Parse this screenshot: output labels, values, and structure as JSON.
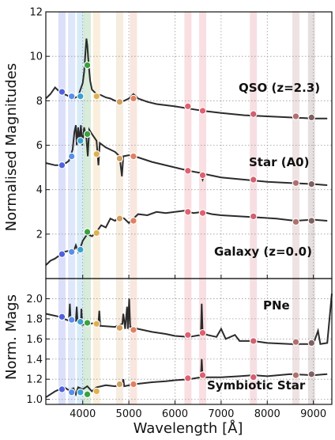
{
  "chart_data": [
    {
      "type": "line",
      "panel": "top",
      "ylabel": "Normalised Magnitudes",
      "ylim": [
        0,
        12
      ],
      "xlim": [
        3200,
        9400
      ],
      "yticks": [
        "2",
        "4",
        "6",
        "8",
        "10",
        "12"
      ],
      "grid": true,
      "filter_bands": [
        {
          "center": 3550,
          "color": "#5060e0"
        },
        {
          "center": 3760,
          "color": "#5a8ee8"
        },
        {
          "center": 3950,
          "color": "#3aa0d0"
        },
        {
          "center": 4100,
          "color": "#3aa040"
        },
        {
          "center": 4300,
          "color": "#e0b050"
        },
        {
          "center": 4800,
          "color": "#d0a060"
        },
        {
          "center": 5100,
          "color": "#e08060"
        },
        {
          "center": 6280,
          "color": "#e06070"
        },
        {
          "center": 6600,
          "color": "#e06070"
        },
        {
          "center": 7700,
          "color": "#d06070"
        },
        {
          "center": 8620,
          "color": "#b07070"
        },
        {
          "center": 8960,
          "color": "#806060"
        }
      ],
      "series": [
        {
          "name": "QSO (z=2.3)",
          "line": [
            [
              3200,
              8.1
            ],
            [
              3300,
              8.3
            ],
            [
              3400,
              8.6
            ],
            [
              3500,
              8.4
            ],
            [
              3600,
              8.3
            ],
            [
              3700,
              8.2
            ],
            [
              3800,
              8.1
            ],
            [
              3900,
              8.2
            ],
            [
              3950,
              8.5
            ],
            [
              4000,
              8.8
            ],
            [
              4030,
              9.3
            ],
            [
              4060,
              10.2
            ],
            [
              4080,
              10.8
            ],
            [
              4100,
              10.5
            ],
            [
              4130,
              9.6
            ],
            [
              4160,
              8.9
            ],
            [
              4200,
              8.5
            ],
            [
              4300,
              8.3
            ],
            [
              4400,
              8.25
            ],
            [
              4500,
              8.15
            ],
            [
              4600,
              8.1
            ],
            [
              4700,
              8.0
            ],
            [
              4800,
              7.95
            ],
            [
              4900,
              8.0
            ],
            [
              5000,
              8.1
            ],
            [
              5100,
              8.3
            ],
            [
              5200,
              8.1
            ],
            [
              5400,
              7.95
            ],
            [
              5600,
              7.85
            ],
            [
              6000,
              7.75
            ],
            [
              6300,
              7.65
            ],
            [
              6600,
              7.55
            ],
            [
              7000,
              7.45
            ],
            [
              7500,
              7.35
            ],
            [
              8000,
              7.3
            ],
            [
              8500,
              7.25
            ],
            [
              9000,
              7.2
            ],
            [
              9300,
              7.2
            ]
          ],
          "points": [
            [
              3550,
              8.4
            ],
            [
              3760,
              8.2
            ],
            [
              3950,
              8.2
            ],
            [
              4100,
              9.6
            ],
            [
              4300,
              8.2
            ],
            [
              4800,
              7.95
            ],
            [
              5100,
              8.1
            ],
            [
              6280,
              7.75
            ],
            [
              6600,
              7.55
            ],
            [
              7700,
              7.4
            ],
            [
              8620,
              7.3
            ],
            [
              8960,
              7.25
            ]
          ]
        },
        {
          "name": "Star (A0)",
          "line": [
            [
              3200,
              5.2
            ],
            [
              3400,
              5.1
            ],
            [
              3500,
              5.1
            ],
            [
              3600,
              5.15
            ],
            [
              3700,
              5.3
            ],
            [
              3780,
              5.8
            ],
            [
              3820,
              6.6
            ],
            [
              3850,
              6.9
            ],
            [
              3870,
              6.0
            ],
            [
              3900,
              6.8
            ],
            [
              3930,
              6.2
            ],
            [
              3960,
              6.9
            ],
            [
              3990,
              6.0
            ],
            [
              4030,
              6.8
            ],
            [
              4080,
              6.3
            ],
            [
              4110,
              5.5
            ],
            [
              4140,
              6.7
            ],
            [
              4200,
              6.5
            ],
            [
              4300,
              6.2
            ],
            [
              4340,
              5.1
            ],
            [
              4370,
              6.1
            ],
            [
              4500,
              5.9
            ],
            [
              4700,
              5.7
            ],
            [
              4800,
              5.5
            ],
            [
              4850,
              4.6
            ],
            [
              4880,
              5.5
            ],
            [
              5000,
              5.55
            ],
            [
              5200,
              5.45
            ],
            [
              5500,
              5.25
            ],
            [
              6000,
              5.0
            ],
            [
              6300,
              4.85
            ],
            [
              6560,
              4.75
            ],
            [
              6600,
              4.45
            ],
            [
              6650,
              4.7
            ],
            [
              7000,
              4.55
            ],
            [
              7500,
              4.45
            ],
            [
              8000,
              4.35
            ],
            [
              8500,
              4.3
            ],
            [
              9000,
              4.25
            ],
            [
              9300,
              4.2
            ]
          ],
          "points": [
            [
              3550,
              5.1
            ],
            [
              3760,
              5.5
            ],
            [
              3950,
              6.2
            ],
            [
              4100,
              6.5
            ],
            [
              4300,
              5.6
            ],
            [
              4800,
              5.4
            ],
            [
              5100,
              5.5
            ],
            [
              6280,
              4.85
            ],
            [
              6600,
              4.65
            ],
            [
              7700,
              4.45
            ],
            [
              8620,
              4.3
            ],
            [
              8960,
              4.25
            ]
          ]
        },
        {
          "name": "Galaxy (z=0.0)",
          "line": [
            [
              3200,
              0.6
            ],
            [
              3300,
              0.8
            ],
            [
              3400,
              0.9
            ],
            [
              3500,
              1.05
            ],
            [
              3600,
              1.2
            ],
            [
              3700,
              1.25
            ],
            [
              3800,
              1.2
            ],
            [
              3850,
              1.5
            ],
            [
              3900,
              1.2
            ],
            [
              3950,
              1.4
            ],
            [
              4000,
              1.7
            ],
            [
              4100,
              2.0
            ],
            [
              4200,
              1.9
            ],
            [
              4300,
              2.1
            ],
            [
              4400,
              2.4
            ],
            [
              4500,
              2.3
            ],
            [
              4600,
              2.7
            ],
            [
              4700,
              2.6
            ],
            [
              4800,
              2.8
            ],
            [
              4900,
              2.7
            ],
            [
              5000,
              2.5
            ],
            [
              5100,
              2.7
            ],
            [
              5200,
              2.9
            ],
            [
              5400,
              2.85
            ],
            [
              5600,
              3.0
            ],
            [
              5800,
              2.95
            ],
            [
              6000,
              3.0
            ],
            [
              6200,
              3.05
            ],
            [
              6400,
              2.95
            ],
            [
              6600,
              3.0
            ],
            [
              6800,
              2.9
            ],
            [
              7000,
              2.85
            ],
            [
              7400,
              2.8
            ],
            [
              7800,
              2.75
            ],
            [
              8200,
              2.7
            ],
            [
              8600,
              2.6
            ],
            [
              9000,
              2.65
            ],
            [
              9300,
              2.6
            ]
          ],
          "points": [
            [
              3550,
              1.1
            ],
            [
              3760,
              1.2
            ],
            [
              3950,
              1.3
            ],
            [
              4100,
              2.1
            ],
            [
              4300,
              2.05
            ],
            [
              4800,
              2.7
            ],
            [
              5100,
              2.6
            ],
            [
              6280,
              3.0
            ],
            [
              6600,
              2.95
            ],
            [
              7700,
              2.8
            ],
            [
              8620,
              2.55
            ],
            [
              8960,
              2.6
            ]
          ]
        }
      ]
    },
    {
      "type": "line",
      "panel": "bottom",
      "ylabel": "Norm. Mags",
      "xlabel": "Wavelength [Å]",
      "ylim": [
        0.95,
        2.2
      ],
      "xlim": [
        3200,
        9400
      ],
      "yticks": [
        "1.0",
        "1.2",
        "1.4",
        "1.6",
        "1.8",
        "2.0"
      ],
      "xticks": [
        "4000",
        "5000",
        "6000",
        "7000",
        "8000",
        "9000"
      ],
      "grid": true,
      "series": [
        {
          "name": "PNe",
          "line": [
            [
              3200,
              1.85
            ],
            [
              3500,
              1.82
            ],
            [
              3700,
              1.78
            ],
            [
              3720,
              1.95
            ],
            [
              3740,
              1.78
            ],
            [
              3850,
              1.78
            ],
            [
              3870,
              1.92
            ],
            [
              3890,
              1.76
            ],
            [
              3960,
              1.75
            ],
            [
              3970,
              1.9
            ],
            [
              3990,
              1.74
            ],
            [
              4100,
              1.75
            ],
            [
              4340,
              1.76
            ],
            [
              4360,
              1.88
            ],
            [
              4380,
              1.73
            ],
            [
              4700,
              1.72
            ],
            [
              4860,
              1.75
            ],
            [
              4880,
              1.85
            ],
            [
              4920,
              1.7
            ],
            [
              4960,
              1.92
            ],
            [
              4980,
              1.7
            ],
            [
              5007,
              2.0
            ],
            [
              5030,
              1.72
            ],
            [
              5200,
              1.7
            ],
            [
              5500,
              1.67
            ],
            [
              5800,
              1.65
            ],
            [
              6000,
              1.63
            ],
            [
              6300,
              1.62
            ],
            [
              6560,
              1.64
            ],
            [
              6580,
              1.95
            ],
            [
              6600,
              1.66
            ],
            [
              6700,
              1.64
            ],
            [
              6900,
              1.62
            ],
            [
              7000,
              1.7
            ],
            [
              7100,
              1.6
            ],
            [
              7300,
              1.64
            ],
            [
              7400,
              1.58
            ],
            [
              7700,
              1.58
            ],
            [
              8000,
              1.56
            ],
            [
              8500,
              1.55
            ],
            [
              9000,
              1.55
            ],
            [
              9100,
              1.68
            ],
            [
              9150,
              1.55
            ],
            [
              9300,
              1.56
            ],
            [
              9400,
              2.05
            ]
          ],
          "points": [
            [
              3550,
              1.82
            ],
            [
              3760,
              1.79
            ],
            [
              3950,
              1.77
            ],
            [
              4100,
              1.76
            ],
            [
              4300,
              1.75
            ],
            [
              4800,
              1.71
            ],
            [
              5100,
              1.69
            ],
            [
              6280,
              1.64
            ],
            [
              6600,
              1.66
            ],
            [
              7700,
              1.58
            ],
            [
              8620,
              1.57
            ],
            [
              8960,
              1.56
            ]
          ]
        },
        {
          "name": "Symbiotic Star",
          "line": [
            [
              3200,
              1.02
            ],
            [
              3300,
              1.05
            ],
            [
              3400,
              1.08
            ],
            [
              3500,
              1.1
            ],
            [
              3600,
              1.12
            ],
            [
              3700,
              1.09
            ],
            [
              3800,
              1.11
            ],
            [
              3850,
              1.05
            ],
            [
              3900,
              1.12
            ],
            [
              4000,
              1.1
            ],
            [
              4100,
              1.13
            ],
            [
              4200,
              1.08
            ],
            [
              4300,
              1.12
            ],
            [
              4500,
              1.14
            ],
            [
              4700,
              1.13
            ],
            [
              4860,
              1.15
            ],
            [
              4880,
              1.2
            ],
            [
              4900,
              1.13
            ],
            [
              5100,
              1.15
            ],
            [
              5500,
              1.17
            ],
            [
              5800,
              1.18
            ],
            [
              6000,
              1.19
            ],
            [
              6300,
              1.2
            ],
            [
              6560,
              1.22
            ],
            [
              6580,
              1.4
            ],
            [
              6600,
              1.22
            ],
            [
              7000,
              1.22
            ],
            [
              7400,
              1.23
            ],
            [
              7700,
              1.24
            ],
            [
              8000,
              1.23
            ],
            [
              8500,
              1.25
            ],
            [
              9000,
              1.24
            ],
            [
              9300,
              1.25
            ]
          ],
          "points": [
            [
              3550,
              1.1
            ],
            [
              3760,
              1.07
            ],
            [
              3950,
              1.07
            ],
            [
              4100,
              1.05
            ],
            [
              4300,
              1.08
            ],
            [
              4800,
              1.15
            ],
            [
              5100,
              1.15
            ],
            [
              6280,
              1.21
            ],
            [
              6600,
              1.24
            ],
            [
              7700,
              1.22
            ],
            [
              8620,
              1.24
            ],
            [
              8960,
              1.25
            ]
          ]
        }
      ]
    }
  ]
}
